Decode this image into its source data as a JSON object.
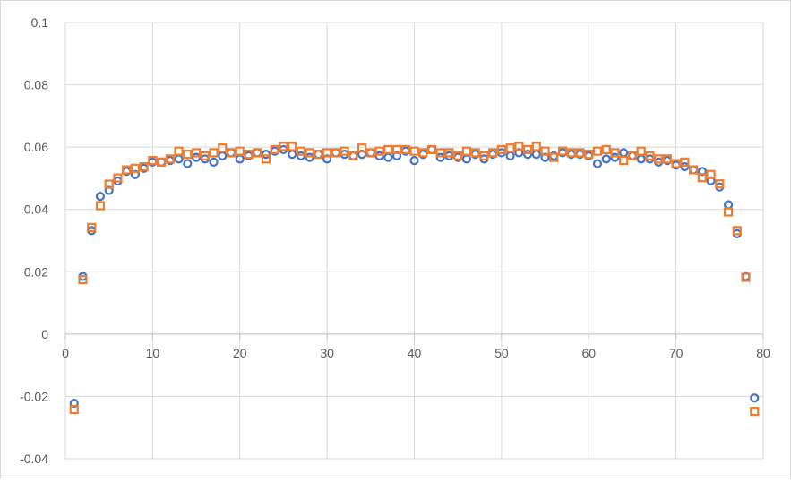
{
  "chart_data": {
    "type": "scatter",
    "title": "",
    "xlabel": "",
    "ylabel": "",
    "xlim": [
      0,
      80
    ],
    "ylim": [
      -0.04,
      0.1
    ],
    "x_ticks": [
      0,
      10,
      20,
      30,
      40,
      50,
      60,
      70,
      80
    ],
    "y_ticks": [
      -0.04,
      -0.02,
      0,
      0.02,
      0.04,
      0.06,
      0.08,
      0.1
    ],
    "x_tick_labels": [
      "0",
      "10",
      "20",
      "30",
      "40",
      "50",
      "60",
      "70",
      "80"
    ],
    "y_tick_labels": [
      "-0.04",
      "-0.02",
      "0",
      "0.02",
      "0.04",
      "0.06",
      "0.08",
      "0.1"
    ],
    "grid": true,
    "legend": "none",
    "series": [
      {
        "marker": "circle",
        "color": "#4472c4",
        "x": [
          1,
          2,
          3,
          4,
          5,
          6,
          7,
          8,
          9,
          10,
          11,
          12,
          13,
          14,
          15,
          16,
          17,
          18,
          19,
          20,
          21,
          22,
          23,
          24,
          25,
          26,
          27,
          28,
          29,
          30,
          31,
          32,
          33,
          34,
          35,
          36,
          37,
          38,
          39,
          40,
          41,
          42,
          43,
          44,
          45,
          46,
          47,
          48,
          49,
          50,
          51,
          52,
          53,
          54,
          55,
          56,
          57,
          58,
          59,
          60,
          61,
          62,
          63,
          64,
          65,
          66,
          67,
          68,
          69,
          70,
          71,
          72,
          73,
          74,
          75,
          76,
          77,
          78,
          79
        ],
        "y": [
          -0.0222,
          0.0185,
          0.0332,
          0.0442,
          0.0461,
          0.0491,
          0.0522,
          0.0512,
          0.0532,
          0.0552,
          0.0552,
          0.0557,
          0.0562,
          0.0547,
          0.0567,
          0.0562,
          0.0552,
          0.0572,
          0.0582,
          0.0562,
          0.0572,
          0.0582,
          0.0577,
          0.0587,
          0.0592,
          0.0577,
          0.0572,
          0.0567,
          0.0577,
          0.0562,
          0.0582,
          0.0577,
          0.0572,
          0.0577,
          0.0582,
          0.0572,
          0.0567,
          0.0572,
          0.0587,
          0.0557,
          0.0577,
          0.0592,
          0.0567,
          0.0572,
          0.0567,
          0.0562,
          0.0577,
          0.0562,
          0.0577,
          0.0582,
          0.0572,
          0.0582,
          0.0577,
          0.0577,
          0.0567,
          0.0572,
          0.0582,
          0.0577,
          0.0577,
          0.0572,
          0.0547,
          0.0562,
          0.0567,
          0.0582,
          0.0572,
          0.0562,
          0.0562,
          0.0552,
          0.0557,
          0.0542,
          0.0537,
          0.0527,
          0.0522,
          0.0492,
          0.0472,
          0.0415,
          0.0322,
          0.0185,
          -0.0205
        ]
      },
      {
        "marker": "square",
        "color": "#ed7d31",
        "x": [
          1,
          2,
          3,
          4,
          5,
          6,
          7,
          8,
          9,
          10,
          11,
          12,
          13,
          14,
          15,
          16,
          17,
          18,
          19,
          20,
          21,
          22,
          23,
          24,
          25,
          26,
          27,
          28,
          29,
          30,
          31,
          32,
          33,
          34,
          35,
          36,
          37,
          38,
          39,
          40,
          41,
          42,
          43,
          44,
          45,
          46,
          47,
          48,
          49,
          50,
          51,
          52,
          53,
          54,
          55,
          56,
          57,
          58,
          59,
          60,
          61,
          62,
          63,
          64,
          65,
          66,
          67,
          68,
          69,
          70,
          71,
          72,
          73,
          74,
          75,
          76,
          77,
          78,
          79
        ],
        "y": [
          -0.0242,
          0.0175,
          0.0342,
          0.0412,
          0.0481,
          0.0501,
          0.0527,
          0.0532,
          0.0537,
          0.0557,
          0.0552,
          0.0562,
          0.0587,
          0.0577,
          0.0582,
          0.0572,
          0.0582,
          0.0597,
          0.0582,
          0.0587,
          0.0577,
          0.0582,
          0.0562,
          0.0592,
          0.0602,
          0.0602,
          0.0587,
          0.0582,
          0.0577,
          0.0582,
          0.0582,
          0.0587,
          0.0572,
          0.0597,
          0.0582,
          0.0587,
          0.0592,
          0.0592,
          0.0592,
          0.0587,
          0.0582,
          0.0592,
          0.0582,
          0.0582,
          0.0572,
          0.0587,
          0.0582,
          0.0572,
          0.0582,
          0.0592,
          0.0597,
          0.0602,
          0.0592,
          0.0602,
          0.0587,
          0.0567,
          0.0587,
          0.0582,
          0.0582,
          0.0577,
          0.0587,
          0.0592,
          0.0582,
          0.0557,
          0.0572,
          0.0587,
          0.0572,
          0.0562,
          0.0562,
          0.0547,
          0.0552,
          0.0527,
          0.0502,
          0.0512,
          0.0482,
          0.0392,
          0.0332,
          0.0182,
          -0.0248
        ]
      }
    ]
  }
}
